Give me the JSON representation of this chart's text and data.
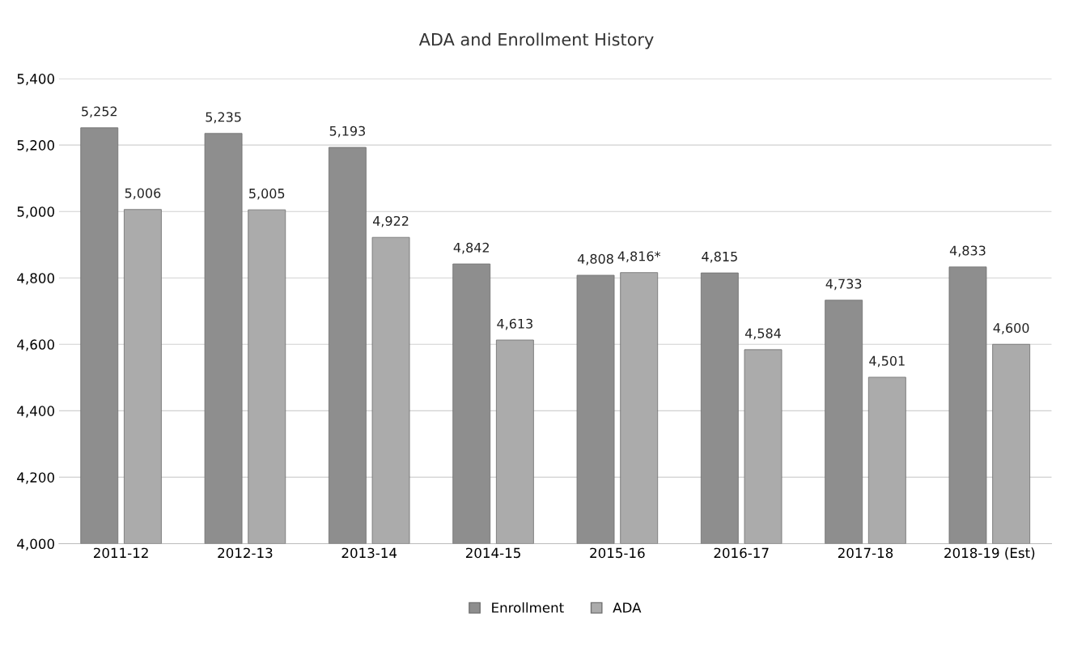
{
  "chart_data": {
    "type": "bar",
    "title": "ADA and Enrollment History",
    "categories": [
      "2011-12",
      "2012-13",
      "2013-14",
      "2014-15",
      "2015-16",
      "2016-17",
      "2017-18",
      "2018-19 (Est)"
    ],
    "series": [
      {
        "name": "Enrollment",
        "color": "#8e8e8e",
        "values": [
          5252,
          5235,
          5193,
          4842,
          4808,
          4815,
          4733,
          4833
        ],
        "value_labels": [
          "5,252",
          "5,235",
          "5,193",
          "4,842",
          "4,808",
          "4,815",
          "4,733",
          "4,833"
        ]
      },
      {
        "name": "ADA",
        "color": "#ababab",
        "values": [
          5006,
          5005,
          4922,
          4613,
          4816,
          4584,
          4501,
          4600
        ],
        "value_labels": [
          "5,006",
          "5,005",
          "4,922",
          "4,613",
          "4,816*",
          "4,584",
          "4,501",
          "4,600"
        ]
      }
    ],
    "ylim": [
      4000,
      5400
    ],
    "yticks": [
      {
        "value": 4000,
        "label": "4,000"
      },
      {
        "value": 4200,
        "label": "4,200"
      },
      {
        "value": 4400,
        "label": "4,400"
      },
      {
        "value": 4600,
        "label": "4,600"
      },
      {
        "value": 4800,
        "label": "4,800"
      },
      {
        "value": 5000,
        "label": "5,000"
      },
      {
        "value": 5200,
        "label": "5,200"
      },
      {
        "value": 5400,
        "label": "5,400"
      }
    ],
    "grid": "y",
    "legend": "bottom"
  }
}
